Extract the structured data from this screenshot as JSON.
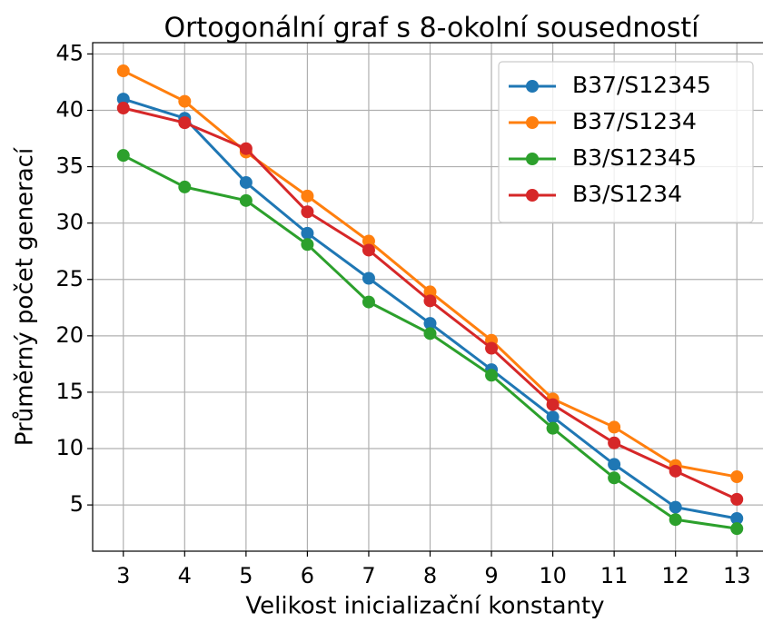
{
  "chart_data": {
    "type": "line",
    "title": "Ortogonální graf s 8-okolní sousedností",
    "xlabel": "Velikost inicializační konstanty",
    "ylabel": "Průměrný počet generací",
    "x": [
      3,
      4,
      5,
      6,
      7,
      8,
      9,
      10,
      11,
      12,
      13
    ],
    "series": [
      {
        "name": "B37/S12345",
        "color": "#1f77b4",
        "values": [
          41.0,
          39.3,
          33.6,
          29.1,
          25.1,
          21.1,
          17.0,
          12.8,
          8.6,
          4.8,
          3.8
        ]
      },
      {
        "name": "B37/S1234",
        "color": "#ff7f0e",
        "values": [
          43.5,
          40.8,
          36.3,
          32.4,
          28.4,
          23.9,
          19.6,
          14.4,
          11.9,
          8.5,
          7.5
        ]
      },
      {
        "name": "B3/S12345",
        "color": "#2ca02c",
        "values": [
          36.0,
          33.2,
          32.0,
          28.1,
          23.0,
          20.2,
          16.5,
          11.8,
          7.4,
          3.7,
          2.9
        ]
      },
      {
        "name": "B3/S1234",
        "color": "#d62728",
        "values": [
          40.2,
          38.9,
          36.6,
          31.0,
          27.6,
          23.1,
          18.9,
          13.9,
          10.5,
          8.0,
          5.5
        ]
      }
    ],
    "xlim": [
      2.5,
      13.5
    ],
    "xticks": [
      3,
      4,
      5,
      6,
      7,
      8,
      9,
      10,
      11,
      12,
      13
    ],
    "ylim": [
      0.9,
      46.0
    ],
    "yticks": [
      5,
      10,
      15,
      20,
      25,
      30,
      35,
      40,
      45
    ],
    "grid": true,
    "legend": "upper right"
  }
}
